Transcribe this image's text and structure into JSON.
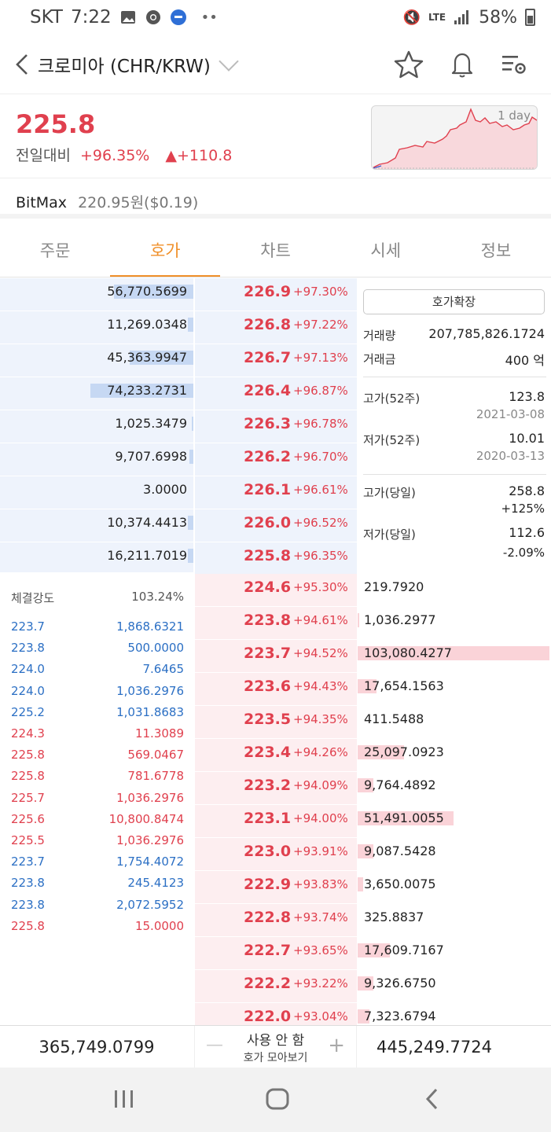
{
  "status": {
    "carrier": "SKT",
    "time": "7:22",
    "network": "LTE",
    "battery": "58%"
  },
  "header": {
    "title": "크로미아 (CHR/KRW)",
    "icons": [
      "star-icon",
      "bell-icon",
      "settings-list-icon"
    ]
  },
  "summary": {
    "price": "225.8",
    "change_label": "전일대비",
    "change_pct": "+96.35%",
    "change_abs": "▲+110.8",
    "chart_label": "1 day"
  },
  "exchange": {
    "name": "BitMax",
    "ref": "220.95원($0.19)"
  },
  "tabs": [
    "주문",
    "호가",
    "차트",
    "시세",
    "정보"
  ],
  "asks": [
    {
      "qty": "56,770.5699",
      "price": "226.9",
      "pct": "+97.30%",
      "fill": 0.56
    },
    {
      "qty": "11,269.0348",
      "price": "226.8",
      "pct": "+97.22%",
      "fill": 0.04
    },
    {
      "qty": "45,363.9947",
      "price": "226.7",
      "pct": "+97.13%",
      "fill": 0.45
    },
    {
      "qty": "74,233.2731",
      "price": "226.4",
      "pct": "+96.87%",
      "fill": 0.73
    },
    {
      "qty": "1,025.3479",
      "price": "226.3",
      "pct": "+96.78%",
      "fill": 0.01
    },
    {
      "qty": "9,707.6998",
      "price": "226.2",
      "pct": "+96.70%",
      "fill": 0.03
    },
    {
      "qty": "3.0000",
      "price": "226.1",
      "pct": "+96.61%",
      "fill": 0
    },
    {
      "qty": "10,374.4413",
      "price": "226.0",
      "pct": "+96.52%",
      "fill": 0.04
    },
    {
      "qty": "16,211.7019",
      "price": "225.8",
      "pct": "+96.35%",
      "fill": 0.04
    }
  ],
  "bids": [
    {
      "qty": "219.7920",
      "price": "224.6",
      "pct": "+95.30%",
      "fill": 0
    },
    {
      "qty": "1,036.2977",
      "price": "223.8",
      "pct": "+94.61%",
      "fill": 0.01
    },
    {
      "qty": "103,080.4277",
      "price": "223.7",
      "pct": "+94.52%",
      "fill": 1.0
    },
    {
      "qty": "17,654.1563",
      "price": "223.6",
      "pct": "+94.43%",
      "fill": 0.1
    },
    {
      "qty": "411.5488",
      "price": "223.5",
      "pct": "+94.35%",
      "fill": 0
    },
    {
      "qty": "25,097.0923",
      "price": "223.4",
      "pct": "+94.26%",
      "fill": 0.24
    },
    {
      "qty": "9,764.4892",
      "price": "223.2",
      "pct": "+94.09%",
      "fill": 0.08
    },
    {
      "qty": "51,491.0055",
      "price": "223.1",
      "pct": "+94.00%",
      "fill": 0.5
    },
    {
      "qty": "9,087.5428",
      "price": "223.0",
      "pct": "+93.91%",
      "fill": 0.08
    },
    {
      "qty": "3,650.0075",
      "price": "222.9",
      "pct": "+93.83%",
      "fill": 0.03
    },
    {
      "qty": "325.8837",
      "price": "222.8",
      "pct": "+93.74%",
      "fill": 0
    },
    {
      "qty": "17,609.7167",
      "price": "222.7",
      "pct": "+93.65%",
      "fill": 0.17
    },
    {
      "qty": "9,326.6750",
      "price": "222.2",
      "pct": "+93.22%",
      "fill": 0.08
    },
    {
      "qty": "7,323.6794",
      "price": "222.0",
      "pct": "+93.04%",
      "fill": 0.06
    }
  ],
  "info": {
    "expand_button": "호가확장",
    "volume_label": "거래량",
    "volume": "207,785,826.1724",
    "amount_label": "거래금",
    "amount": "400 억",
    "high52_label": "고가(52주)",
    "high52": "123.8",
    "high52_date": "2021-03-08",
    "low52_label": "저가(52주)",
    "low52": "10.01",
    "low52_date": "2020-03-13",
    "high_day_label": "고가(당일)",
    "high_day": "258.8",
    "high_day_pct": "+125%",
    "low_day_label": "저가(당일)",
    "low_day": "112.6",
    "low_day_pct": "-2.09%"
  },
  "trades": {
    "strength_label": "체결강도",
    "strength": "103.24%",
    "rows": [
      {
        "price": "223.7",
        "qty": "1,868.6321",
        "side": "sell"
      },
      {
        "price": "223.8",
        "qty": "500.0000",
        "side": "sell"
      },
      {
        "price": "224.0",
        "qty": "7.6465",
        "side": "sell"
      },
      {
        "price": "224.0",
        "qty": "1,036.2976",
        "side": "sell"
      },
      {
        "price": "225.2",
        "qty": "1,031.8683",
        "side": "sell"
      },
      {
        "price": "224.3",
        "qty": "11.3089",
        "side": "buy"
      },
      {
        "price": "225.8",
        "qty": "569.0467",
        "side": "buy"
      },
      {
        "price": "225.8",
        "qty": "781.6778",
        "side": "buy"
      },
      {
        "price": "225.7",
        "qty": "1,036.2976",
        "side": "buy"
      },
      {
        "price": "225.6",
        "qty": "10,800.8474",
        "side": "buy"
      },
      {
        "price": "225.5",
        "qty": "1,036.2976",
        "side": "buy"
      },
      {
        "price": "223.7",
        "qty": "1,754.4072",
        "side": "sell"
      },
      {
        "price": "223.8",
        "qty": "245.4123",
        "side": "sell"
      },
      {
        "price": "223.8",
        "qty": "2,072.5952",
        "side": "sell"
      },
      {
        "price": "225.8",
        "qty": "15.0000",
        "side": "buy"
      }
    ]
  },
  "footer": {
    "ask_total": "365,749.0799",
    "bid_total": "445,249.7724",
    "group_value": "사용 안 함",
    "group_label": "호가 모아보기"
  },
  "colors": {
    "up": "#e0404e",
    "down": "#2b6fc4",
    "accent": "#f0902a"
  }
}
